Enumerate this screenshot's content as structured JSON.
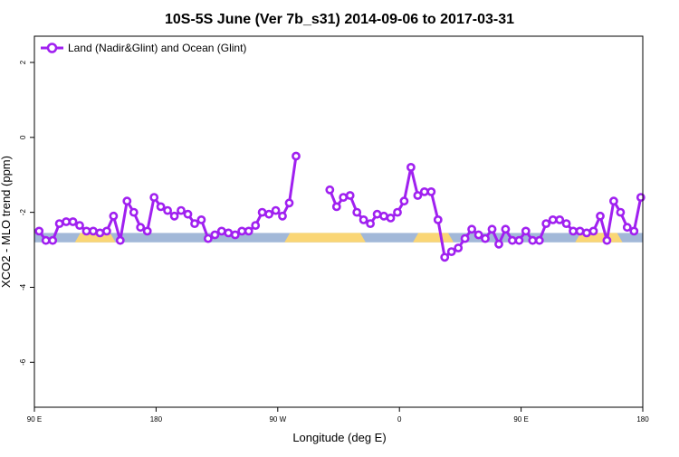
{
  "chart_data": {
    "type": "line",
    "title": "10S-5S June (Ver 7b_s31)   2014-09-06 to 2017-03-31",
    "xlabel": "Longitude (deg E)",
    "ylabel": "XCO2 - MLO trend (ppm)",
    "ylim": [
      -7.2,
      2.7
    ],
    "y_ticks": [
      2,
      0,
      -2,
      -4,
      -6
    ],
    "x_ticks": [
      {
        "value": 90,
        "label": "90 E"
      },
      {
        "value": 180,
        "label": "180"
      },
      {
        "value": 270,
        "label": "90 W"
      },
      {
        "value": 360,
        "label": "0"
      },
      {
        "value": 450,
        "label": "90 E"
      },
      {
        "value": 540,
        "label": "180"
      }
    ],
    "xlim": [
      90,
      540
    ],
    "legend_position": "top-left",
    "grid": false,
    "surface_band": {
      "y_range": [
        -2.55,
        -2.8
      ],
      "ocean_color": "#a2b8d8",
      "land_color": "#fad675",
      "land_segments": [
        [
          120,
          150
        ],
        [
          275,
          335
        ],
        [
          370,
          400
        ],
        [
          490,
          525
        ]
      ]
    },
    "series": [
      {
        "name": "Land (Nadir&Glint) and Ocean (Glint)",
        "color": "#a020f0",
        "segments": [
          {
            "x": [
              93.5,
              98.5,
              103.5,
              108.5,
              113.5,
              118.5,
              123.5,
              128.5,
              133.5,
              138.5,
              143.5,
              148.5,
              153.5,
              158.5,
              163.5,
              168.5,
              173.5,
              178.5,
              183.5,
              188.5,
              193.5,
              198.5,
              203.5,
              208.5,
              213.5,
              218.5,
              223.5,
              228.5,
              233.5,
              238.5,
              243.5,
              248.5,
              253.5,
              258.5,
              263.5,
              268.5,
              273.5,
              278.5,
              283.5
            ],
            "y": [
              -2.5,
              -2.75,
              -2.75,
              -2.3,
              -2.25,
              -2.25,
              -2.35,
              -2.5,
              -2.5,
              -2.55,
              -2.5,
              -2.1,
              -2.75,
              -1.7,
              -2.0,
              -2.4,
              -2.5,
              -1.6,
              -1.85,
              -1.95,
              -2.1,
              -1.95,
              -2.05,
              -2.3,
              -2.2,
              -2.7,
              -2.6,
              -2.5,
              -2.55,
              -2.6,
              -2.5,
              -2.5,
              -2.35,
              -2.0,
              -2.05,
              -1.95,
              -2.1,
              -1.75,
              -0.5
            ]
          },
          {
            "x": [
              308.5,
              313.5,
              318.5,
              323.5,
              328.5,
              333.5,
              338.5,
              343.5,
              348.5,
              353.5,
              358.5,
              363.5,
              368.5,
              373.5,
              378.5,
              383.5,
              388.5,
              393.5,
              398.5,
              403.5,
              408.5,
              413.5,
              418.5,
              423.5,
              428.5,
              433.5,
              438.5,
              443.5,
              448.5,
              453.5,
              458.5,
              463.5,
              468.5,
              473.5,
              478.5,
              483.5,
              488.5,
              493.5,
              498.5,
              503.5,
              508.5,
              513.5,
              518.5,
              523.5,
              528.5,
              533.5,
              538.5
            ],
            "y": [
              -1.4,
              -1.85,
              -1.6,
              -1.55,
              -2.0,
              -2.2,
              -2.3,
              -2.05,
              -2.1,
              -2.15,
              -2.0,
              -1.7,
              -0.8,
              -1.55,
              -1.45,
              -1.45,
              -2.2,
              -3.2,
              -3.05,
              -2.95,
              -2.7,
              -2.45,
              -2.6,
              -2.7,
              -2.45,
              -2.85,
              -2.45,
              -2.75,
              -2.75,
              -2.5,
              -2.75,
              -2.75,
              -2.3,
              -2.2,
              -2.2,
              -2.3,
              -2.5,
              -2.5,
              -2.55,
              -2.5,
              -2.1,
              -2.75,
              -1.7,
              -2.0,
              -2.4,
              -2.5,
              -1.6
            ]
          }
        ]
      }
    ]
  }
}
